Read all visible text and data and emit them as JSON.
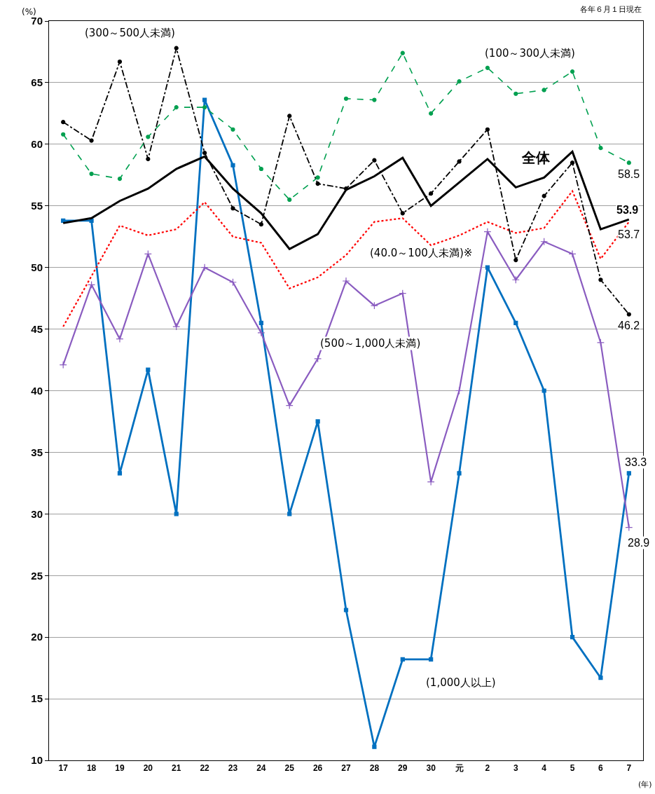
{
  "chart_data": {
    "type": "line",
    "categories": [
      "17",
      "18",
      "19",
      "20",
      "21",
      "22",
      "23",
      "24",
      "25",
      "26",
      "27",
      "28",
      "29",
      "30",
      "元",
      "2",
      "3",
      "4",
      "5",
      "6",
      "7"
    ],
    "ylabel": "(%)",
    "xlabel": "(年)",
    "annotations": [
      "各年６月１日現在"
    ],
    "ylim": [
      10,
      70
    ],
    "yticks": [
      10,
      15,
      20,
      25,
      30,
      35,
      40,
      45,
      50,
      55,
      60,
      65,
      70
    ],
    "grid": "y",
    "legend": false,
    "series": [
      {
        "name": "全体",
        "color": "#000000",
        "line_style": "solid",
        "marker": "none",
        "values": [
          53.6,
          54.0,
          55.4,
          56.4,
          58.0,
          59.0,
          56.4,
          54.4,
          51.5,
          52.7,
          56.3,
          57.4,
          58.9,
          55.0,
          56.9,
          58.8,
          56.5,
          57.3,
          59.4,
          53.1,
          53.9
        ],
        "value_labels": [
          null,
          null,
          null,
          null,
          null,
          null,
          null,
          null,
          null,
          null,
          null,
          null,
          null,
          null,
          null,
          null,
          null,
          null,
          null,
          null,
          "53.9"
        ]
      },
      {
        "name": "(100～300人未満)",
        "color": "#00a050",
        "line_style": "dashed",
        "marker": "circle",
        "values": [
          60.8,
          57.6,
          57.2,
          60.6,
          63.0,
          63.0,
          61.2,
          58.0,
          55.5,
          57.3,
          63.7,
          63.6,
          67.4,
          62.5,
          65.1,
          66.2,
          64.1,
          64.4,
          65.9,
          59.7,
          58.5
        ],
        "value_labels": [
          null,
          null,
          null,
          null,
          null,
          null,
          null,
          null,
          null,
          null,
          null,
          null,
          null,
          null,
          null,
          null,
          null,
          null,
          null,
          null,
          "58.5"
        ]
      },
      {
        "name": "(300～500人未満)",
        "color": "#000000",
        "line_style": "dashdot",
        "marker": "circle",
        "values": [
          61.8,
          60.3,
          66.7,
          58.8,
          67.8,
          59.3,
          54.8,
          53.5,
          62.3,
          56.8,
          56.4,
          58.7,
          54.4,
          56.0,
          58.6,
          61.2,
          50.6,
          55.8,
          58.5,
          49.0,
          46.2
        ],
        "value_labels": [
          null,
          null,
          null,
          null,
          null,
          null,
          null,
          null,
          null,
          null,
          null,
          null,
          null,
          null,
          null,
          null,
          null,
          null,
          null,
          null,
          "46.2"
        ]
      },
      {
        "name": "(40.0～100人未満)※",
        "color": "#ff0000",
        "line_style": "dotted",
        "marker": "none",
        "values": [
          45.2,
          49.3,
          53.4,
          52.6,
          53.1,
          55.3,
          52.5,
          52.0,
          48.3,
          49.2,
          51.0,
          53.7,
          54.0,
          51.8,
          52.6,
          53.7,
          52.8,
          53.2,
          56.2,
          50.7,
          53.7
        ],
        "value_labels": [
          null,
          null,
          null,
          null,
          null,
          null,
          null,
          null,
          null,
          null,
          null,
          null,
          null,
          null,
          null,
          null,
          null,
          null,
          null,
          null,
          "53.7"
        ]
      },
      {
        "name": "(500～1,000人未満)",
        "color": "#8a5cc0",
        "line_style": "solid",
        "marker": "cross",
        "values": [
          42.1,
          48.6,
          44.2,
          51.1,
          45.2,
          50.0,
          48.8,
          44.7,
          38.8,
          42.6,
          48.9,
          46.9,
          47.9,
          32.6,
          40.0,
          52.9,
          49.0,
          52.1,
          51.1,
          43.9,
          28.9
        ],
        "value_labels": [
          null,
          null,
          null,
          null,
          null,
          null,
          null,
          null,
          null,
          null,
          null,
          null,
          null,
          null,
          null,
          null,
          null,
          null,
          null,
          null,
          "28.9"
        ]
      },
      {
        "name": "(1,000人以上)",
        "color": "#0070c0",
        "line_style": "solid",
        "marker": "square",
        "values": [
          53.8,
          53.8,
          33.3,
          41.7,
          30.0,
          63.6,
          58.3,
          45.5,
          30.0,
          37.5,
          22.2,
          11.1,
          18.2,
          18.2,
          33.3,
          50.0,
          45.5,
          40.0,
          20.0,
          16.7,
          33.3
        ],
        "value_labels": [
          null,
          null,
          null,
          null,
          null,
          null,
          null,
          null,
          null,
          null,
          null,
          null,
          null,
          null,
          null,
          null,
          null,
          null,
          null,
          null,
          "33.3"
        ]
      }
    ]
  }
}
